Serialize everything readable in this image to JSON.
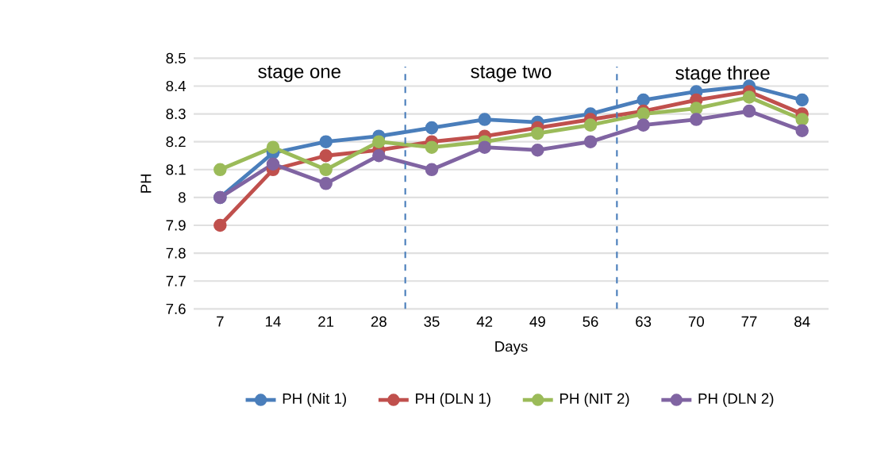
{
  "chart_data": {
    "type": "line",
    "xlabel": "Days",
    "ylabel": "PH",
    "categories": [
      "7",
      "14",
      "21",
      "28",
      "35",
      "42",
      "49",
      "56",
      "63",
      "70",
      "77",
      "84"
    ],
    "series": [
      {
        "name": "PH (Nit 1)",
        "color": "#4a7ebb",
        "values": [
          8.0,
          8.16,
          8.2,
          8.22,
          8.25,
          8.28,
          8.27,
          8.3,
          8.35,
          8.38,
          8.4,
          8.35
        ]
      },
      {
        "name": "PH (DLN 1)",
        "color": "#c0504d",
        "values": [
          7.9,
          8.1,
          8.15,
          8.17,
          8.2,
          8.22,
          8.25,
          8.28,
          8.31,
          8.35,
          8.38,
          8.3
        ]
      },
      {
        "name": "PH (NIT 2)",
        "color": "#9bbb59",
        "values": [
          8.1,
          8.18,
          8.1,
          8.2,
          8.18,
          8.2,
          8.23,
          8.26,
          8.3,
          8.32,
          8.36,
          8.28
        ]
      },
      {
        "name": "PH (DLN 2)",
        "color": "#8064a2",
        "values": [
          8.0,
          8.12,
          8.05,
          8.15,
          8.1,
          8.18,
          8.17,
          8.2,
          8.26,
          8.28,
          8.31,
          8.24
        ]
      }
    ],
    "ylim": [
      7.6,
      8.5
    ],
    "yticks": [
      7.6,
      7.7,
      7.8,
      7.9,
      8,
      8.1,
      8.2,
      8.3,
      8.4,
      8.5
    ],
    "annotations": [
      "stage one",
      "stage two",
      "stage three"
    ],
    "grid": "y",
    "legend": "bottom",
    "marker": "circle",
    "line_style": "solid"
  }
}
